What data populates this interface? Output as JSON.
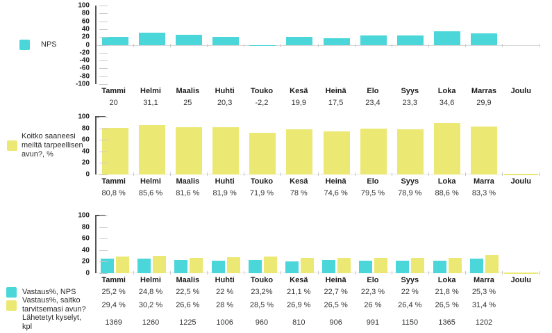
{
  "accent_colors": {
    "cyan": "#4bd7d9",
    "yellow": "#ece874",
    "axis": "#555555",
    "tick": "#c9c9c9"
  },
  "chart_data": [
    {
      "type": "bar",
      "title": "",
      "legend": [
        {
          "key": "nps",
          "label": "NPS",
          "color": "#4bd7d9"
        }
      ],
      "y_axis": {
        "min": -100,
        "max": 100,
        "step": 20
      },
      "grid": "ticks-only",
      "legend_position": "left",
      "categories": [
        "Tammi",
        "Helmi",
        "Maalis",
        "Huhti",
        "Touko",
        "Kesä",
        "Heinä",
        "Elo",
        "Syys",
        "Loka",
        "Marras",
        "Joulu"
      ],
      "series": [
        {
          "key": "nps",
          "name": "NPS",
          "color": "#4bd7d9",
          "values": [
            20,
            31.1,
            25,
            20.3,
            -2.2,
            19.9,
            17.5,
            23.4,
            23.3,
            34.6,
            29.9,
            null
          ]
        }
      ],
      "rows": {
        "months": [
          "Tammi",
          "Helmi",
          "Maalis",
          "Huhti",
          "Touko",
          "Kesä",
          "Heinä",
          "Elo",
          "Syys",
          "Loka",
          "Marras",
          "Joulu"
        ],
        "values": [
          "20",
          "31,1",
          "25",
          "20,3",
          "-2,2",
          "19,9",
          "17,5",
          "23,4",
          "23,3",
          "34,6",
          "29,9",
          ""
        ]
      }
    },
    {
      "type": "bar",
      "title": "",
      "legend": [
        {
          "key": "avun",
          "label": "Koitko saaneesi meiltä tarpeellisen avun?, %",
          "color": "#ece874"
        }
      ],
      "y_axis": {
        "min": 0,
        "max": 100,
        "step": 20
      },
      "grid": "ticks-only",
      "legend_position": "left",
      "categories": [
        "Tammi",
        "Helmi",
        "Maalis",
        "Huhti",
        "Touko",
        "Kesä",
        "Heinä",
        "Elo",
        "Syys",
        "Loka",
        "Marra",
        "Joulu"
      ],
      "series": [
        {
          "key": "avun",
          "name": "Koitko saaneesi meiltä tarpeellisen avun?, %",
          "color": "#ece874",
          "values": [
            80.8,
            85.6,
            81.6,
            81.9,
            71.9,
            78,
            74.6,
            79.5,
            78.9,
            88.6,
            83.3,
            0
          ]
        }
      ],
      "rows": {
        "months": [
          "Tammi",
          "Helmi",
          "Maalis",
          "Huhti",
          "Touko",
          "Kesä",
          "Heinä",
          "Elo",
          "Syys",
          "Loka",
          "Marra",
          "Joulu"
        ],
        "values": [
          "80,8 %",
          "85,6 %",
          "81,6 %",
          "81,9 %",
          "71,9 %",
          "78 %",
          "74,6 %",
          "79,5 %",
          "78,9 %",
          "88,6 %",
          "83,3 %",
          ""
        ]
      }
    },
    {
      "type": "bar",
      "title": "",
      "legend": [
        {
          "key": "vastaus_nps",
          "label": "Vastaus%, NPS",
          "color": "#4bd7d9"
        },
        {
          "key": "vastaus_avun",
          "label": "Vastaus%, saitko tarvitsemasi avun?",
          "color": "#ece874"
        },
        {
          "key": "kyselyt",
          "label": "Lähetetyt kyselyt, kpl",
          "color": null
        }
      ],
      "y_axis": {
        "min": 0,
        "max": 100,
        "step": 20
      },
      "grid": "ticks-only",
      "legend_position": "left",
      "categories": [
        "Tammi",
        "Helmi",
        "Maalis",
        "Huhti",
        "Touko",
        "Kesä",
        "Heinä",
        "Elo",
        "Syys",
        "Loka",
        "Marra",
        "Joulu"
      ],
      "series": [
        {
          "key": "vastaus_nps",
          "name": "Vastaus%, NPS",
          "color": "#4bd7d9",
          "values": [
            25.2,
            24.8,
            22.5,
            22,
            23.2,
            21.1,
            22.7,
            22.3,
            22,
            21.8,
            25.3,
            null
          ]
        },
        {
          "key": "vastaus_avun",
          "name": "Vastaus%, saitko tarvitsemasi avun?",
          "color": "#ece874",
          "values": [
            29.4,
            30.2,
            26.6,
            28,
            28.5,
            26.9,
            26.5,
            26,
            26.4,
            26.5,
            31.4,
            0
          ]
        }
      ],
      "rows": {
        "months": [
          "Tammi",
          "Helmi",
          "Maalis",
          "Huhti",
          "Touko",
          "Kesä",
          "Heinä",
          "Elo",
          "Syys",
          "Loka",
          "Marra",
          "Joulu"
        ],
        "vastaus_nps": [
          "25,2 %",
          "24,8 %",
          "22,5 %",
          "22 %",
          "23,2%",
          "21,1 %",
          "22,7 %",
          "22,3 %",
          "22 %",
          "21,8 %",
          "25,3 %",
          ""
        ],
        "vastaus_avun": [
          "29,4 %",
          "30,2 %",
          "26,6 %",
          "28 %",
          "28,5 %",
          "26,9 %",
          "26,5 %",
          "26 %",
          "26,4 %",
          "26,5 %",
          "31,4 %",
          ""
        ],
        "kyselyt": [
          "1369",
          "1260",
          "1225",
          "1006",
          "960",
          "810",
          "906",
          "991",
          "1150",
          "1365",
          "1202",
          ""
        ]
      }
    }
  ]
}
